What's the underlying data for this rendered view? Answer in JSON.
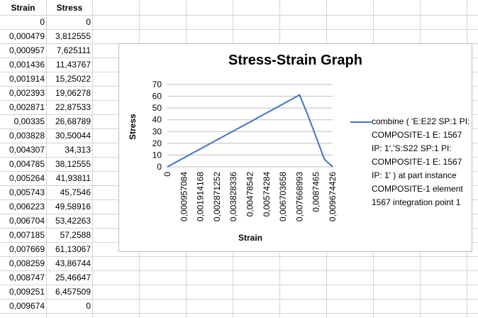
{
  "sheet": {
    "headers": {
      "strain": "Strain",
      "stress": "Stress"
    },
    "rows": [
      [
        "0",
        "0"
      ],
      [
        "0,000479",
        "3,812555"
      ],
      [
        "0,000957",
        "7,625111"
      ],
      [
        "0,001436",
        "11,43767"
      ],
      [
        "0,001914",
        "15,25022"
      ],
      [
        "0,002393",
        "19,06278"
      ],
      [
        "0,002871",
        "22,87533"
      ],
      [
        "0,00335",
        "26,68789"
      ],
      [
        "0,003828",
        "30,50044"
      ],
      [
        "0,004307",
        "34,313"
      ],
      [
        "0,004785",
        "38,12555"
      ],
      [
        "0,005264",
        "41,93811"
      ],
      [
        "0,005743",
        "45,7546"
      ],
      [
        "0,006223",
        "49,58916"
      ],
      [
        "0,006704",
        "53,42263"
      ],
      [
        "0,007185",
        "57,2588"
      ],
      [
        "0,007669",
        "61,13067"
      ],
      [
        "0,008259",
        "43,86744"
      ],
      [
        "0,008747",
        "25,46647"
      ],
      [
        "0,009251",
        "6,457509"
      ],
      [
        "0,009674",
        "0"
      ]
    ]
  },
  "chart": {
    "title": "Stress-Strain Graph",
    "xlabel": "Strain",
    "ylabel": "Stress",
    "legend": "combine ( 'E:E22 SP:1 PI: COMPOSITE-1 E: 1567 IP: 1','S:S22 SP:1 PI: COMPOSITE-1 E: 1567 IP: 1' )  at part instance COMPOSITE-1 element 1567 integration point 1",
    "series_color": "#4472C4"
  },
  "chart_data": {
    "type": "line",
    "title": "Stress-Strain Graph",
    "xlabel": "Strain",
    "ylabel": "Stress",
    "ylim": [
      0,
      70
    ],
    "yticks": [
      "0",
      "10",
      "20",
      "30",
      "40",
      "50",
      "60",
      "70"
    ],
    "xticks": [
      "0",
      "0,000957084",
      "0,001914168",
      "0,002871252",
      "0,003828336",
      "0,00478542",
      "0,00574284",
      "0,006703658",
      "0,007668993",
      "0,0087465",
      "0,009674426"
    ],
    "grid": true,
    "legend_position": "right",
    "series": [
      {
        "name": "combine ( 'E:E22 SP:1 PI: COMPOSITE-1 E: 1567 IP: 1','S:S22 SP:1 PI: COMPOSITE-1 E: 1567 IP: 1' )  at part instance COMPOSITE-1 element 1567 integration point 1",
        "values": [
          0,
          3.812555,
          7.625111,
          11.43767,
          15.25022,
          19.06278,
          22.87533,
          26.68789,
          30.50044,
          34.313,
          38.12555,
          41.93811,
          45.7546,
          49.58916,
          53.42263,
          57.2588,
          61.13067,
          43.86744,
          25.46647,
          6.457509,
          0
        ]
      }
    ]
  }
}
